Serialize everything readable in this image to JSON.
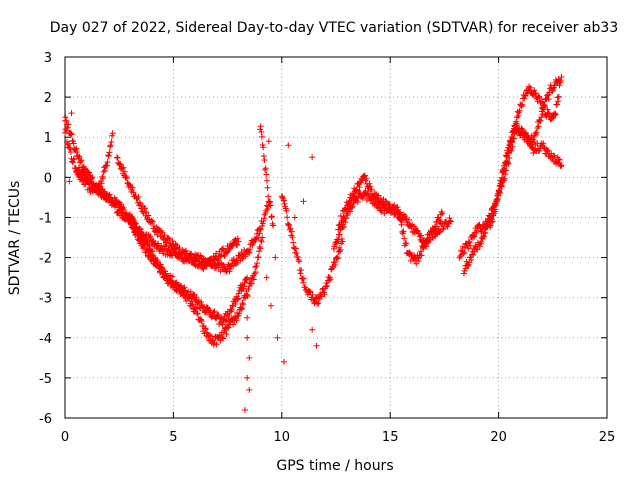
{
  "chart_data": {
    "type": "scatter",
    "title": "Day 027 of 2022, Sidereal Day-to-day VTEC variation (SDTVAR) for receiver ab33",
    "xlabel": "GPS time / hours",
    "ylabel": "SDTVAR / TECUs",
    "xlim": [
      0,
      25
    ],
    "ylim": [
      -6,
      3
    ],
    "xticks": [
      0,
      5,
      10,
      15,
      20,
      25
    ],
    "yticks": [
      -6,
      -5,
      -4,
      -3,
      -2,
      -1,
      0,
      1,
      2,
      3
    ],
    "grid": true,
    "marker": "+",
    "marker_color": "#ff0000",
    "series": [
      {
        "name": "SDTVAR",
        "trace_paths": [
          {
            "x": [
              0.0,
              0.3,
              0.7,
              1.2,
              1.6,
              1.9,
              2.2
            ],
            "y": [
              1.2,
              0.5,
              0.0,
              -0.3,
              -0.2,
              0.3,
              1.1
            ]
          },
          {
            "x": [
              0.0,
              0.4,
              0.9,
              1.5,
              2.1,
              2.6,
              3.1,
              3.6,
              4.2,
              4.8,
              5.3,
              5.8,
              6.3,
              6.8,
              7.2,
              7.6,
              8.1,
              8.4
            ],
            "y": [
              1.5,
              0.8,
              0.2,
              -0.3,
              -0.6,
              -0.9,
              -1.1,
              -1.5,
              -2.1,
              -2.6,
              -2.8,
              -2.9,
              -3.2,
              -3.4,
              -3.6,
              -3.4,
              -2.8,
              -2.5
            ]
          },
          {
            "x": [
              0.5,
              1.0,
              1.5,
              2.0,
              2.5,
              3.0,
              3.5,
              4.0,
              4.5,
              5.0,
              5.5,
              6.0,
              6.4,
              6.8,
              7.2,
              7.6,
              8.0,
              8.4,
              8.8,
              9.1
            ],
            "y": [
              0.2,
              0.0,
              -0.3,
              -0.5,
              -0.7,
              -1.1,
              -1.6,
              -2.0,
              -2.4,
              -2.6,
              -2.9,
              -3.3,
              -3.8,
              -4.1,
              -4.0,
              -3.7,
              -3.4,
              -2.9,
              -2.3,
              -1.5
            ]
          },
          {
            "x": [
              2.4,
              3.0,
              3.6,
              4.2,
              4.8,
              5.4,
              6.0,
              6.5,
              7.0,
              7.5,
              8.0,
              8.5,
              9.0,
              9.4
            ],
            "y": [
              0.5,
              -0.2,
              -0.8,
              -1.3,
              -1.6,
              -1.9,
              -2.0,
              -2.1,
              -2.2,
              -2.3,
              -2.0,
              -1.8,
              -1.3,
              -0.6
            ]
          },
          {
            "x": [
              3.0,
              3.5,
              4.0,
              4.5,
              5.0,
              5.5,
              6.0,
              6.5,
              7.0,
              7.5,
              8.0
            ],
            "y": [
              -1.0,
              -1.4,
              -1.6,
              -1.8,
              -1.9,
              -2.0,
              -2.1,
              -2.2,
              -2.0,
              -1.8,
              -1.6
            ]
          },
          {
            "x": [
              9.0,
              9.2,
              9.4,
              9.6
            ],
            "y": [
              1.3,
              0.4,
              -0.5,
              -1.2
            ]
          },
          {
            "x": [
              10.0,
              10.4,
              10.8,
              11.2,
              11.6,
              12.0,
              12.4,
              12.8
            ],
            "y": [
              -0.5,
              -1.3,
              -2.2,
              -2.9,
              -3.1,
              -2.8,
              -2.2,
              -1.6
            ]
          },
          {
            "x": [
              12.4,
              12.9,
              13.3,
              13.8,
              14.2,
              14.7,
              15.1,
              15.6,
              16.1,
              16.6,
              17.0,
              17.4,
              17.8
            ],
            "y": [
              -1.8,
              -1.1,
              -0.6,
              -0.4,
              -0.6,
              -0.8,
              -0.7,
              -1.0,
              -1.3,
              -1.6,
              -1.4,
              -1.2,
              -1.1
            ]
          },
          {
            "x": [
              12.6,
              13.0,
              13.4,
              13.8,
              14.2,
              14.6,
              15.0,
              15.4,
              15.8,
              16.2,
              16.6,
              17.0,
              17.4
            ],
            "y": [
              -1.2,
              -0.7,
              -0.3,
              0.0,
              -0.4,
              -0.6,
              -0.8,
              -0.9,
              -1.9,
              -2.1,
              -1.7,
              -1.3,
              -0.9
            ]
          },
          {
            "x": [
              18.2,
              18.6,
              19.0,
              19.4,
              19.8,
              20.2,
              20.6,
              21.0,
              21.4,
              21.8,
              22.2,
              22.6,
              22.9
            ],
            "y": [
              -1.9,
              -1.7,
              -1.3,
              -1.2,
              -0.8,
              0.1,
              1.0,
              1.8,
              2.2,
              2.0,
              1.6,
              1.5,
              2.5
            ]
          },
          {
            "x": [
              18.4,
              18.8,
              19.2,
              19.6,
              20.0,
              20.4,
              20.8,
              21.2,
              21.6,
              22.0,
              22.4,
              22.8
            ],
            "y": [
              -2.3,
              -1.9,
              -1.6,
              -1.0,
              -0.4,
              0.6,
              1.3,
              1.0,
              0.9,
              1.6,
              2.2,
              2.4
            ]
          },
          {
            "x": [
              19.6,
              20.0,
              20.4,
              20.8,
              21.2,
              21.6,
              22.0,
              22.4,
              22.8,
              22.9
            ],
            "y": [
              -1.3,
              -0.5,
              0.3,
              1.2,
              1.1,
              0.7,
              0.8,
              0.5,
              0.4,
              0.3
            ]
          }
        ],
        "scatter_points": [
          {
            "x": 0.3,
            "y": 1.6
          },
          {
            "x": 0.2,
            "y": -0.1
          },
          {
            "x": 8.4,
            "y": -3.5
          },
          {
            "x": 8.4,
            "y": -4.0
          },
          {
            "x": 8.5,
            "y": -4.5
          },
          {
            "x": 8.4,
            "y": -5.0
          },
          {
            "x": 8.5,
            "y": -5.3
          },
          {
            "x": 8.3,
            "y": -5.8
          },
          {
            "x": 9.5,
            "y": -3.2
          },
          {
            "x": 9.8,
            "y": -4.0
          },
          {
            "x": 10.1,
            "y": -4.6
          },
          {
            "x": 9.3,
            "y": -2.5
          },
          {
            "x": 11.4,
            "y": 0.5
          },
          {
            "x": 10.3,
            "y": 0.8
          },
          {
            "x": 11.6,
            "y": -4.2
          },
          {
            "x": 11.4,
            "y": -3.8
          },
          {
            "x": 10.6,
            "y": -1.0
          },
          {
            "x": 11.0,
            "y": -0.6
          },
          {
            "x": 9.4,
            "y": 0.9
          },
          {
            "x": 9.7,
            "y": -2.0
          }
        ]
      }
    ]
  }
}
